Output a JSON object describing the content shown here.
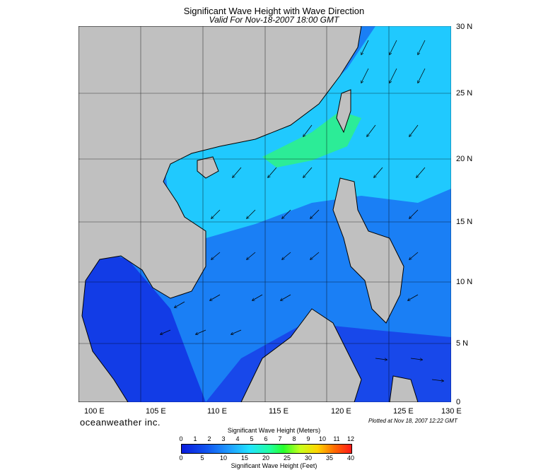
{
  "title": "Significant Wave Height with Wave Direction",
  "subtitle": "Valid For Nov-18-2007 18:00 GMT",
  "lat_labels": [
    "30 N",
    "25 N",
    "20 N",
    "15 N",
    "10 N",
    "5 N",
    "0"
  ],
  "lon_labels": [
    "100 E",
    "105 E",
    "110 E",
    "115 E",
    "120 E",
    "125 E",
    "130 E"
  ],
  "brand": "oceanweather inc.",
  "plotted": "Plotted at Nov 18, 2007 12:22 GMT",
  "colorbar": {
    "title_meters": "Significant Wave Height (Meters)",
    "title_feet": "Significant Wave Height (Feet)",
    "meters_ticks": [
      "0",
      "1",
      "2",
      "3",
      "4",
      "5",
      "6",
      "7",
      "8",
      "9",
      "10",
      "11",
      "12"
    ],
    "feet_ticks": [
      "0",
      "5",
      "10",
      "15",
      "20",
      "25",
      "30",
      "35",
      "40"
    ]
  },
  "colors": {
    "land": "#c0c0c0",
    "deep_blue": "#1438e6",
    "mid_blue": "#1a7ff5",
    "cyan": "#1ee0ff",
    "green": "#2ef08c"
  }
}
